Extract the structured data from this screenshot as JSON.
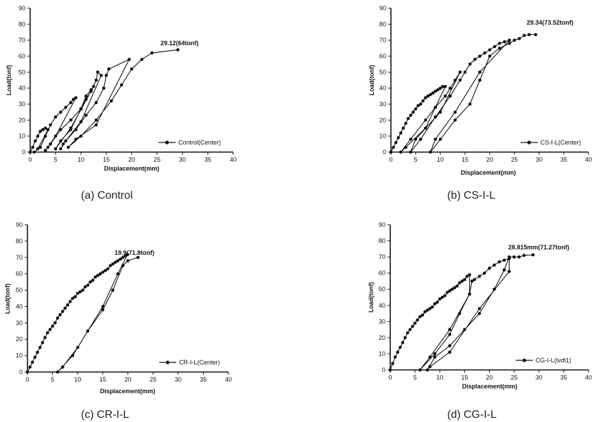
{
  "chart_data": [
    {
      "type": "line",
      "caption": "(a) Control",
      "xlabel": "Displacement(mm)",
      "ylabel": "Load(tonf)",
      "xlim": [
        0,
        40
      ],
      "ylim": [
        0,
        90
      ],
      "xticks": [
        0,
        5,
        10,
        15,
        20,
        25,
        30,
        35,
        40
      ],
      "yticks": [
        0,
        10,
        20,
        30,
        40,
        50,
        60,
        70,
        80,
        90
      ],
      "legend_position": "bottom-right",
      "annotation": {
        "text": "29.12(64tonf)",
        "x": 29.1,
        "y": 64
      },
      "series": [
        {
          "name": "Control(Center)",
          "points": [
            [
              0,
              0
            ],
            [
              0.5,
              3
            ],
            [
              1,
              7
            ],
            [
              1.5,
              10
            ],
            [
              2,
              13
            ],
            [
              2.5,
              14
            ],
            [
              3,
              15
            ],
            [
              3.5,
              14
            ],
            [
              1.5,
              2
            ],
            [
              0.8,
              0
            ],
            [
              2,
              3
            ],
            [
              3,
              10
            ],
            [
              4,
              17
            ],
            [
              5,
              22
            ],
            [
              6,
              25
            ],
            [
              7,
              28
            ],
            [
              8,
              31
            ],
            [
              8.5,
              33
            ],
            [
              9,
              34
            ],
            [
              5,
              10
            ],
            [
              3.5,
              3
            ],
            [
              3,
              1
            ],
            [
              4,
              5
            ],
            [
              6,
              14
            ],
            [
              8,
              20
            ],
            [
              10,
              27
            ],
            [
              11,
              35
            ],
            [
              12,
              39
            ],
            [
              12.5,
              41
            ],
            [
              8,
              15
            ],
            [
              5,
              2
            ],
            [
              6,
              7
            ],
            [
              8,
              14
            ],
            [
              10,
              27
            ],
            [
              11,
              33
            ],
            [
              12,
              38
            ],
            [
              13,
              45
            ],
            [
              13.3,
              50
            ],
            [
              14,
              48
            ],
            [
              10,
              19
            ],
            [
              6.5,
              5
            ],
            [
              6,
              2
            ],
            [
              7,
              7
            ],
            [
              9,
              14
            ],
            [
              11,
              23
            ],
            [
              13,
              31
            ],
            [
              14.5,
              40
            ],
            [
              15,
              48
            ],
            [
              15.5,
              52
            ],
            [
              19.5,
              58
            ],
            [
              13,
              17
            ],
            [
              9,
              8
            ],
            [
              7.5,
              3
            ],
            [
              10,
              10
            ],
            [
              13,
              20
            ],
            [
              16,
              32
            ],
            [
              18,
              42
            ],
            [
              20,
              52
            ],
            [
              22,
              58
            ],
            [
              24,
              62
            ],
            [
              29.1,
              64
            ]
          ]
        }
      ]
    },
    {
      "type": "line",
      "caption": "(b) CS-I-L",
      "xlabel": "Displacement(mm)",
      "ylabel": "Load(tonf)",
      "xlim": [
        0,
        40
      ],
      "ylim": [
        0,
        90
      ],
      "xticks": [
        0,
        5,
        10,
        15,
        20,
        25,
        30,
        35,
        40
      ],
      "yticks": [
        0,
        10,
        20,
        30,
        40,
        50,
        60,
        70,
        80,
        90
      ],
      "legend_position": "bottom-right",
      "annotation": {
        "text": "29.34(73.52tonf)",
        "x": 29.3,
        "y": 73.5
      },
      "series": [
        {
          "name": "CS-I-L(Center)",
          "points": [
            [
              0,
              0
            ],
            [
              0.5,
              3
            ],
            [
              1,
              6
            ],
            [
              1.5,
              9
            ],
            [
              2,
              12
            ],
            [
              2.5,
              15
            ],
            [
              3,
              18
            ],
            [
              3.5,
              21
            ],
            [
              4,
              23
            ],
            [
              4.5,
              25
            ],
            [
              5,
              27
            ],
            [
              5.5,
              29
            ],
            [
              6,
              30
            ],
            [
              6.5,
              32
            ],
            [
              7,
              34
            ],
            [
              7.5,
              35
            ],
            [
              8,
              36
            ],
            [
              8.5,
              37
            ],
            [
              9,
              38
            ],
            [
              9.5,
              39
            ],
            [
              10,
              40
            ],
            [
              10.5,
              41
            ],
            [
              11,
              41
            ],
            [
              7,
              15
            ],
            [
              3,
              3
            ],
            [
              2,
              0
            ],
            [
              4,
              8
            ],
            [
              7,
              20
            ],
            [
              9,
              28
            ],
            [
              11,
              35
            ],
            [
              12,
              40
            ],
            [
              13,
              45
            ],
            [
              14,
              50
            ],
            [
              10,
              25
            ],
            [
              5,
              8
            ],
            [
              4,
              0
            ],
            [
              6,
              8
            ],
            [
              9,
              22
            ],
            [
              12,
              35
            ],
            [
              14,
              45
            ],
            [
              15,
              50
            ],
            [
              16,
              55
            ],
            [
              17,
              58
            ],
            [
              18,
              60
            ],
            [
              19,
              62
            ],
            [
              20,
              64
            ],
            [
              21,
              66
            ],
            [
              22,
              68
            ],
            [
              23,
              69
            ],
            [
              24,
              70
            ],
            [
              18,
              50
            ],
            [
              13,
              25
            ],
            [
              9,
              8
            ],
            [
              8,
              0
            ],
            [
              10,
              8
            ],
            [
              13,
              20
            ],
            [
              16,
              30
            ],
            [
              18,
              45
            ],
            [
              20,
              60
            ],
            [
              22,
              65
            ],
            [
              24,
              68
            ],
            [
              25,
              70
            ],
            [
              26,
              71
            ],
            [
              27,
              73
            ],
            [
              28,
              73.5
            ],
            [
              29.3,
              73.5
            ]
          ]
        }
      ]
    },
    {
      "type": "line",
      "caption": "(c) CR-I-L",
      "xlabel": "Displacement(mm)",
      "ylabel": "Load(tonf)",
      "xlim": [
        0,
        40
      ],
      "ylim": [
        0,
        90
      ],
      "xticks": [
        0,
        5,
        10,
        15,
        20,
        25,
        30,
        35,
        40
      ],
      "yticks": [
        0,
        10,
        20,
        30,
        40,
        50,
        60,
        70,
        80,
        90
      ],
      "legend_position": "bottom-right",
      "annotation": {
        "text": "19.9(71.8tonf)",
        "x": 19.9,
        "y": 71.8
      },
      "series": [
        {
          "name": "CR-I-L(Center)",
          "points": [
            [
              0,
              0
            ],
            [
              0.5,
              3
            ],
            [
              1,
              6
            ],
            [
              1.5,
              9
            ],
            [
              2,
              12
            ],
            [
              2.5,
              15
            ],
            [
              3,
              18
            ],
            [
              3.5,
              21
            ],
            [
              4,
              24
            ],
            [
              4.5,
              26
            ],
            [
              5,
              28
            ],
            [
              5.5,
              30
            ],
            [
              6,
              33
            ],
            [
              6.5,
              35
            ],
            [
              7,
              37
            ],
            [
              7.5,
              39
            ],
            [
              8,
              41
            ],
            [
              8.5,
              43
            ],
            [
              9,
              45
            ],
            [
              9.5,
              46
            ],
            [
              10,
              48
            ],
            [
              10.5,
              49
            ],
            [
              11,
              50
            ],
            [
              11.5,
              52
            ],
            [
              12,
              53
            ],
            [
              12.5,
              55
            ],
            [
              13,
              56
            ],
            [
              13.5,
              58
            ],
            [
              14,
              59
            ],
            [
              14.5,
              60
            ],
            [
              15,
              61
            ],
            [
              15.5,
              62
            ],
            [
              16,
              63
            ],
            [
              16.5,
              65
            ],
            [
              17,
              66
            ],
            [
              17.5,
              67
            ],
            [
              18,
              68
            ],
            [
              18.5,
              69
            ],
            [
              19,
              70
            ],
            [
              19.5,
              71
            ],
            [
              19.9,
              71.8
            ],
            [
              18,
              60
            ],
            [
              15,
              40
            ],
            [
              10,
              15
            ],
            [
              7,
              3
            ],
            [
              6,
              0
            ],
            [
              9,
              10
            ],
            [
              12,
              25
            ],
            [
              15,
              38
            ],
            [
              17,
              50
            ],
            [
              19,
              65
            ],
            [
              20,
              68
            ],
            [
              22,
              70
            ]
          ]
        }
      ]
    },
    {
      "type": "line",
      "caption": "(d) CG-I-L",
      "xlabel": "Displacement(mm)",
      "ylabel": "Load(tonf)",
      "xlim": [
        0,
        40
      ],
      "ylim": [
        0,
        90
      ],
      "xticks": [
        0,
        5,
        10,
        15,
        20,
        25,
        30,
        35,
        40
      ],
      "yticks": [
        0,
        10,
        20,
        30,
        40,
        50,
        60,
        70,
        80,
        90
      ],
      "legend_position": "bottom-right",
      "annotation": {
        "text": "28.815mm(71.27tonf)",
        "x": 28.8,
        "y": 71.3
      },
      "series": [
        {
          "name": "CG-I-L(lvdt1)",
          "points": [
            [
              0,
              0
            ],
            [
              0.5,
              4
            ],
            [
              1,
              8
            ],
            [
              1.5,
              11
            ],
            [
              2,
              14
            ],
            [
              2.5,
              17
            ],
            [
              3,
              20
            ],
            [
              3.5,
              23
            ],
            [
              4,
              25
            ],
            [
              4.5,
              27
            ],
            [
              5,
              29
            ],
            [
              5.5,
              31
            ],
            [
              6,
              33
            ],
            [
              6.5,
              34
            ],
            [
              7,
              36
            ],
            [
              7.5,
              37
            ],
            [
              8,
              38
            ],
            [
              8.5,
              39
            ],
            [
              9,
              41
            ],
            [
              9.5,
              42
            ],
            [
              10,
              44
            ],
            [
              10.5,
              45
            ],
            [
              11,
              46
            ],
            [
              11.5,
              48
            ],
            [
              12,
              49
            ],
            [
              12.5,
              50
            ],
            [
              13,
              51
            ],
            [
              13.5,
              52
            ],
            [
              14,
              54
            ],
            [
              14.5,
              55
            ],
            [
              15,
              56
            ],
            [
              15.5,
              58
            ],
            [
              16,
              59
            ],
            [
              16,
              47
            ],
            [
              12,
              25
            ],
            [
              8,
              8
            ],
            [
              6,
              0
            ],
            [
              9,
              10
            ],
            [
              12,
              22
            ],
            [
              14,
              35
            ],
            [
              16,
              47
            ],
            [
              16.5,
              55
            ],
            [
              17,
              56
            ],
            [
              18,
              58
            ],
            [
              19,
              60
            ],
            [
              20,
              63
            ],
            [
              21,
              65
            ],
            [
              22,
              67
            ],
            [
              23,
              68
            ],
            [
              24,
              69
            ],
            [
              24,
              61
            ],
            [
              18,
              38
            ],
            [
              12,
              11
            ],
            [
              8,
              2
            ],
            [
              7.5,
              0
            ],
            [
              9,
              8
            ],
            [
              12,
              15
            ],
            [
              15,
              25
            ],
            [
              18,
              35
            ],
            [
              21,
              50
            ],
            [
              23,
              62
            ],
            [
              24,
              70
            ],
            [
              25,
              70
            ],
            [
              26,
              70
            ],
            [
              27,
              71
            ],
            [
              28.8,
              71.3
            ]
          ]
        }
      ]
    }
  ]
}
